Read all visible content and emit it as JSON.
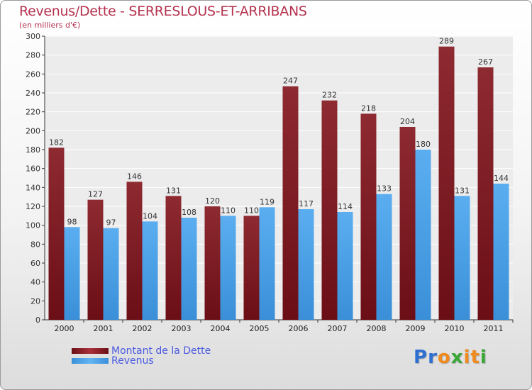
{
  "colors": {
    "dette": "#6b0e16",
    "revenus": "#3a8fd8",
    "title": "#b5334f",
    "legend_text": "#4a5ae0"
  },
  "logo": {
    "text": "Proxiti"
  },
  "chart_data": {
    "type": "bar",
    "title": "Revenus/Dette - SERRESLOUS-ET-ARRIBANS",
    "subtitle": "(en milliers d'€)",
    "categories": [
      "2000",
      "2001",
      "2002",
      "2003",
      "2004",
      "2005",
      "2006",
      "2007",
      "2008",
      "2009",
      "2010",
      "2011"
    ],
    "series": [
      {
        "name": "Montant de la Dette",
        "values": [
          182,
          127,
          146,
          131,
          120,
          110,
          247,
          232,
          218,
          204,
          289,
          267
        ]
      },
      {
        "name": "Revenus",
        "values": [
          98,
          97,
          104,
          108,
          110,
          119,
          117,
          114,
          133,
          180,
          131,
          144
        ]
      }
    ],
    "ylim": [
      0,
      300
    ],
    "yticks": [
      0,
      20,
      40,
      60,
      80,
      100,
      120,
      140,
      160,
      180,
      200,
      220,
      240,
      260,
      280,
      300
    ],
    "grid": true,
    "legend": "bottom-left"
  }
}
